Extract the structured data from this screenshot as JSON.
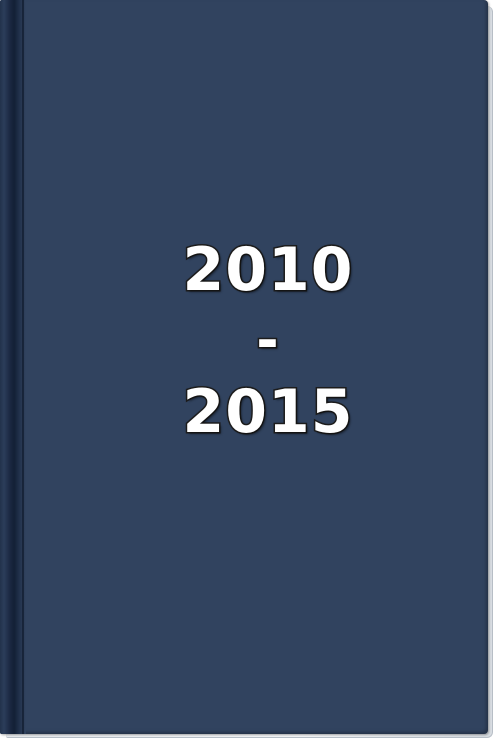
{
  "cover": {
    "year_start": "2010",
    "separator": "-",
    "year_end": "2015"
  },
  "colors": {
    "cover": "#31435f",
    "spine": "#1a2740",
    "text": "#ffffff",
    "text_outline": "#1d1d1d"
  }
}
